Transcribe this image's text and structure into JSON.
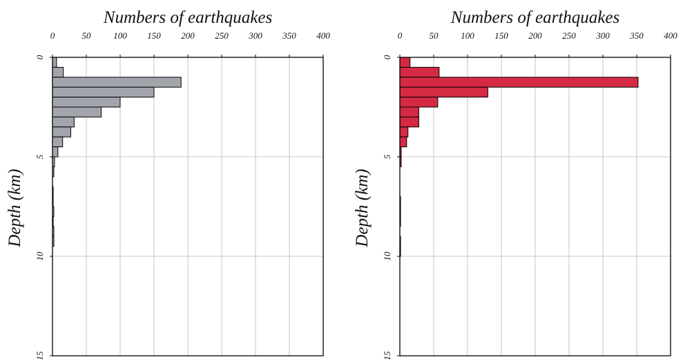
{
  "chart_data": [
    {
      "type": "bar",
      "orientation": "horizontal",
      "xlabel": "Numbers of earthquakes",
      "ylabel": "Depth (km)",
      "xlim": [
        0,
        400
      ],
      "ylim": [
        0,
        15
      ],
      "xticks": [
        0,
        50,
        100,
        150,
        200,
        250,
        300,
        350,
        400
      ],
      "yticks": [
        0,
        5,
        10,
        15
      ],
      "bin_width_km": 0.5,
      "grid": true,
      "color": "#a3a5ac",
      "depths": [
        0,
        0.5,
        1.0,
        1.5,
        2.0,
        2.5,
        3.0,
        3.5,
        4.0,
        4.5,
        5.0,
        5.5,
        6.0,
        6.5,
        7.0,
        7.5,
        8.0,
        8.5,
        9.0
      ],
      "values": [
        6,
        16,
        190,
        150,
        100,
        72,
        32,
        27,
        15,
        8,
        3,
        2,
        0,
        1,
        1,
        2,
        1,
        2,
        2
      ]
    },
    {
      "type": "bar",
      "orientation": "horizontal",
      "xlabel": "Numbers of earthquakes",
      "ylabel": "Depth (km)",
      "xlim": [
        0,
        400
      ],
      "ylim": [
        0,
        15
      ],
      "xticks": [
        0,
        50,
        100,
        150,
        200,
        250,
        300,
        350,
        400
      ],
      "yticks": [
        0,
        5,
        10,
        15
      ],
      "bin_width_km": 0.5,
      "grid": true,
      "color": "#d42a44",
      "depths": [
        0,
        0.5,
        1.0,
        1.5,
        2.0,
        2.5,
        3.0,
        3.5,
        4.0,
        4.5,
        5.0,
        5.5,
        6.0,
        6.5,
        7.0,
        7.5,
        8.0,
        8.5,
        9.0,
        9.5
      ],
      "values": [
        15,
        58,
        352,
        130,
        56,
        28,
        28,
        12,
        10,
        2,
        2,
        0,
        0,
        0,
        1,
        1,
        1,
        0,
        1,
        1
      ]
    }
  ]
}
